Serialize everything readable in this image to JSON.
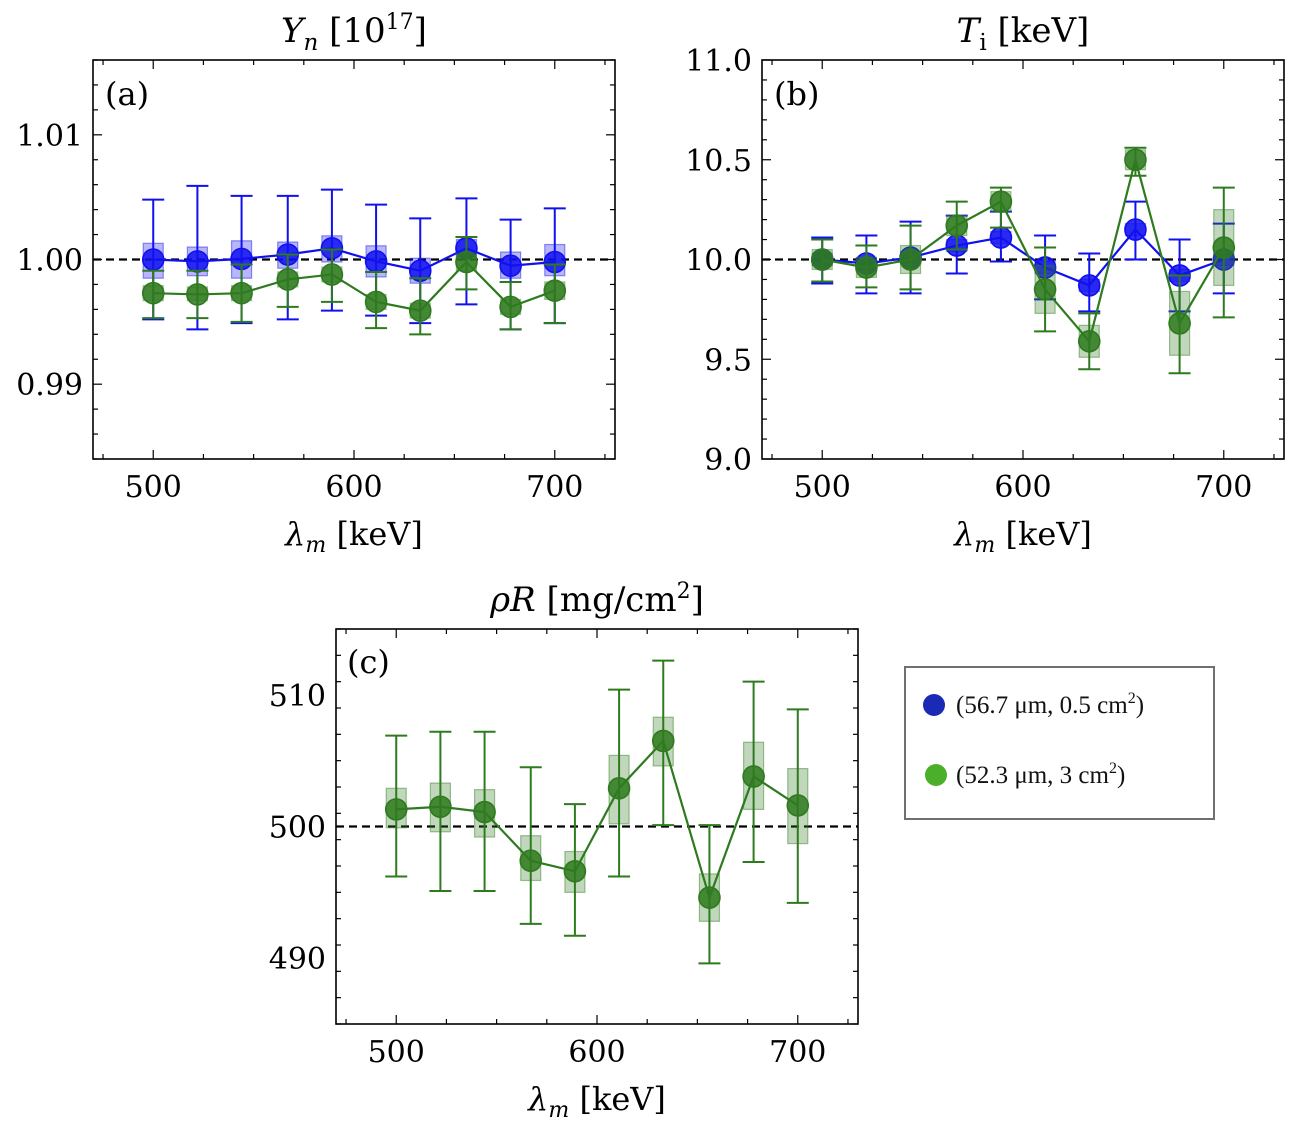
{
  "colors": {
    "blue": "#1010f0",
    "green": "#2e7a1e",
    "legend_blue": "#1a2ab4",
    "legend_green": "#4caf2c"
  },
  "legend": {
    "entries": [
      {
        "label": "(56.7 μm, 0.5 cm",
        "sup": "2",
        "close": ")",
        "marker_color": "#1a2ab4"
      },
      {
        "label": "(52.3 μm, 3 cm",
        "sup": "2",
        "close": ")",
        "marker_color": "#4caf2c"
      }
    ]
  },
  "chart_data": [
    {
      "type": "scatter",
      "panel": "(a)",
      "title": "Y_n [10^17]",
      "title_main": "Y",
      "title_sub": "n",
      "title_rest": " [10",
      "title_sup": "17",
      "title_end": "]",
      "xlabel": "λ_m [keV]",
      "xlim": [
        470,
        730
      ],
      "ylim": [
        0.984,
        1.016
      ],
      "xticks": [
        500,
        600,
        700
      ],
      "yticks": [
        0.99,
        1.0,
        1.01
      ],
      "ytick_labels": [
        "0.99",
        "1.00",
        "1.01"
      ],
      "reference_line": 1.0,
      "x": [
        500,
        522,
        544,
        567,
        589,
        611,
        633,
        656,
        678,
        700
      ],
      "series": [
        {
          "name": "(56.7 μm, 0.5 cm²)",
          "color": "#1010f0",
          "values": [
            1.0,
            0.99985,
            1.00005,
            1.0004,
            1.0009,
            0.99985,
            0.9991,
            1.0009,
            0.9995,
            0.9998
          ],
          "err_low": [
            0.9952,
            0.9944,
            0.9949,
            0.9952,
            0.9959,
            0.9955,
            0.9949,
            0.9964,
            0.9944,
            0.9949
          ],
          "err_high": [
            1.0048,
            1.0059,
            1.0051,
            1.0051,
            1.0056,
            1.0044,
            1.0033,
            1.0049,
            1.0032,
            1.0041
          ],
          "box_low": [
            0.9985,
            0.9987,
            0.9985,
            0.9993,
            0.9998,
            0.9986,
            0.9981,
            1.0002,
            0.9985,
            0.9987
          ],
          "box_high": [
            1.0013,
            1.001,
            1.0015,
            1.0014,
            1.0019,
            1.0011,
            1.0001,
            1.0016,
            1.0006,
            1.0012
          ]
        },
        {
          "name": "(52.3 μm, 3 cm²)",
          "color": "#2e7a1e",
          "values": [
            0.9973,
            0.9972,
            0.9973,
            0.9984,
            0.9988,
            0.9966,
            0.9959,
            0.9998,
            0.9962,
            0.9975
          ],
          "err_low": [
            0.9953,
            0.9953,
            0.995,
            0.9962,
            0.9966,
            0.9945,
            0.994,
            0.9976,
            0.9944,
            0.9949
          ],
          "err_high": [
            0.9991,
            0.9991,
            0.9996,
            1.0004,
            1.0008,
            0.999,
            0.9985,
            1.0018,
            0.9982,
            0.9996
          ],
          "box_low": [
            0.9967,
            0.9967,
            0.9967,
            0.9978,
            0.9982,
            0.996,
            0.9953,
            0.9991,
            0.9956,
            0.9968
          ],
          "box_high": [
            0.9979,
            0.9978,
            0.9979,
            0.999,
            0.9994,
            0.9972,
            0.9965,
            1.0005,
            0.9968,
            0.9982
          ]
        }
      ]
    },
    {
      "type": "scatter",
      "panel": "(b)",
      "title": "T_i [keV]",
      "title_main": "T",
      "title_sub": "i",
      "title_rest": " [keV]",
      "title_sup": "",
      "title_end": "",
      "xlabel": "λ_m [keV]",
      "xlim": [
        470,
        730
      ],
      "ylim": [
        9.0,
        11.0
      ],
      "xticks": [
        500,
        600,
        700
      ],
      "yticks": [
        9.0,
        9.5,
        10.0,
        10.5,
        11.0
      ],
      "ytick_labels": [
        "9.0",
        "9.5",
        "10.0",
        "10.5",
        "11.0"
      ],
      "reference_line": 10.0,
      "x": [
        500,
        522,
        544,
        567,
        589,
        611,
        633,
        656,
        678,
        700
      ],
      "series": [
        {
          "name": "(56.7 μm, 0.5 cm²)",
          "color": "#1010f0",
          "values": [
            10.0,
            9.98,
            10.01,
            10.07,
            10.11,
            9.96,
            9.87,
            10.15,
            9.92,
            10.0
          ],
          "err_low": [
            9.88,
            9.83,
            9.83,
            9.93,
            9.99,
            9.8,
            9.74,
            10.0,
            9.74,
            9.83
          ],
          "err_high": [
            10.11,
            10.12,
            10.19,
            10.22,
            10.24,
            10.12,
            10.03,
            10.29,
            10.1,
            10.18
          ],
          "box_low": [
            9.97,
            9.95,
            9.98,
            10.04,
            10.08,
            9.93,
            9.84,
            10.12,
            9.89,
            9.97
          ],
          "box_high": [
            10.03,
            10.01,
            10.04,
            10.1,
            10.14,
            9.99,
            9.9,
            10.18,
            9.95,
            10.03
          ]
        },
        {
          "name": "(52.3 μm, 3 cm²)",
          "color": "#2e7a1e",
          "values": [
            10.0,
            9.96,
            10.0,
            10.17,
            10.29,
            9.85,
            9.59,
            10.5,
            9.68,
            10.06
          ],
          "err_low": [
            9.89,
            9.86,
            9.85,
            10.05,
            10.16,
            9.64,
            9.45,
            10.42,
            9.43,
            9.71
          ],
          "err_high": [
            10.1,
            10.07,
            10.17,
            10.29,
            10.36,
            10.06,
            9.73,
            10.56,
            9.92,
            10.36
          ],
          "box_low": [
            9.95,
            9.91,
            9.93,
            10.12,
            10.24,
            9.73,
            9.51,
            10.45,
            9.52,
            9.87
          ],
          "box_high": [
            10.05,
            10.01,
            10.07,
            10.22,
            10.34,
            9.97,
            9.67,
            10.55,
            9.84,
            10.25
          ]
        }
      ]
    },
    {
      "type": "scatter",
      "panel": "(c)",
      "title": "ρR [mg/cm²]",
      "title_main": "ρR",
      "title_sub": "",
      "title_rest": " [mg/cm",
      "title_sup": "2",
      "title_end": "]",
      "xlabel": "λ_m [keV]",
      "xlim": [
        470,
        730
      ],
      "ylim": [
        485,
        515
      ],
      "xticks": [
        500,
        600,
        700
      ],
      "yticks": [
        490,
        500,
        510
      ],
      "ytick_labels": [
        "490",
        "500",
        "510"
      ],
      "reference_line": 500,
      "x": [
        500,
        522,
        544,
        567,
        589,
        611,
        633,
        656,
        678,
        700
      ],
      "series": [
        {
          "name": "(52.3 μm, 3 cm²)",
          "color": "#2e7a1e",
          "values": [
            501.3,
            501.5,
            501.1,
            497.4,
            496.6,
            502.9,
            506.5,
            494.6,
            503.8,
            501.6
          ],
          "err_low": [
            496.2,
            495.1,
            495.1,
            492.6,
            491.7,
            496.2,
            500.1,
            489.6,
            497.3,
            494.2
          ],
          "err_high": [
            506.9,
            507.2,
            507.2,
            504.5,
            501.7,
            510.4,
            512.6,
            500.1,
            511.0,
            508.9
          ],
          "box_low": [
            499.9,
            499.6,
            499.2,
            495.9,
            495.0,
            500.2,
            504.6,
            492.8,
            501.3,
            498.7
          ],
          "box_high": [
            502.9,
            503.3,
            502.8,
            499.3,
            498.1,
            505.4,
            508.3,
            496.4,
            506.4,
            504.4
          ]
        }
      ]
    }
  ]
}
